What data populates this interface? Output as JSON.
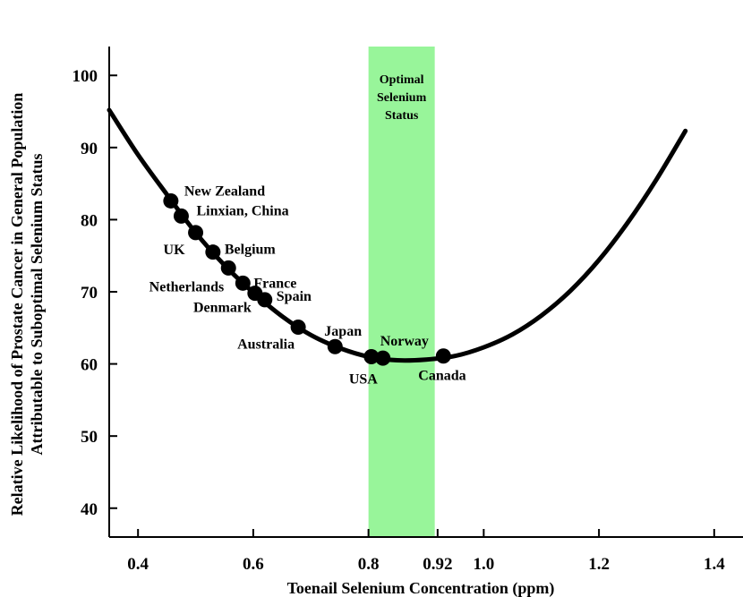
{
  "chart_data": {
    "type": "line",
    "xlabel": "Toenail Selenium Concentration (ppm)",
    "ylabel_lines": [
      "Relative Likelihood of Prostate Cancer in General Population",
      "Attributable to Suboptimal Selenium Status"
    ],
    "xlim": [
      0.35,
      1.45
    ],
    "ylim": [
      36,
      104
    ],
    "x_ticks": [
      {
        "value": 0.4,
        "label": "0.4"
      },
      {
        "value": 0.6,
        "label": "0.6"
      },
      {
        "value": 0.8,
        "label": "0.8"
      },
      {
        "value": 0.92,
        "label": "0.92"
      },
      {
        "value": 1.0,
        "label": "1.0"
      },
      {
        "value": 1.2,
        "label": "1.2"
      },
      {
        "value": 1.4,
        "label": "1.4"
      }
    ],
    "y_ticks": [
      {
        "value": 40,
        "label": "40"
      },
      {
        "value": 50,
        "label": "50"
      },
      {
        "value": 60,
        "label": "60"
      },
      {
        "value": 70,
        "label": "70"
      },
      {
        "value": 80,
        "label": "80"
      },
      {
        "value": 90,
        "label": "90"
      },
      {
        "value": 100,
        "label": "100"
      }
    ],
    "curve": {
      "x": [
        0.35,
        0.4,
        0.45,
        0.5,
        0.55,
        0.6,
        0.65,
        0.7,
        0.75,
        0.8,
        0.85,
        0.9,
        0.95,
        1.0,
        1.05,
        1.1,
        1.15,
        1.2,
        1.25,
        1.3,
        1.35
      ],
      "y": [
        95.2,
        89.0,
        83.5,
        78.2,
        73.7,
        69.9,
        66.6,
        64.0,
        62.2,
        61.0,
        60.5,
        60.6,
        61.1,
        62.3,
        64.1,
        66.7,
        70.1,
        74.4,
        79.6,
        85.6,
        92.3
      ]
    },
    "band": {
      "x_from": 0.8,
      "x_to": 0.915,
      "color": "#98f59a",
      "label_lines": [
        "Optimal",
        "Selenium",
        "Status"
      ]
    },
    "points": [
      {
        "label": "New Zealand",
        "x": 0.457,
        "y": 82.6
      },
      {
        "label": "Linxian, China",
        "x": 0.475,
        "y": 80.5
      },
      {
        "label": "UK",
        "x": 0.5,
        "y": 78.2
      },
      {
        "label": "Belgium",
        "x": 0.53,
        "y": 75.5
      },
      {
        "label": "Netherlands",
        "x": 0.557,
        "y": 73.3
      },
      {
        "label": "France",
        "x": 0.582,
        "y": 71.2
      },
      {
        "label": "Denmark",
        "x": 0.603,
        "y": 69.8
      },
      {
        "label": "Spain",
        "x": 0.62,
        "y": 68.9
      },
      {
        "label": "Australia",
        "x": 0.678,
        "y": 65.1
      },
      {
        "label": "Japan",
        "x": 0.742,
        "y": 62.4
      },
      {
        "label": "USA",
        "x": 0.805,
        "y": 61.0
      },
      {
        "label": "Norway",
        "x": 0.825,
        "y": 60.8
      },
      {
        "label": "Canada",
        "x": 0.93,
        "y": 61.1
      }
    ],
    "grid": false,
    "legend": "none",
    "colors": {
      "curve": "#000000",
      "points": "#000000",
      "band": "#98f59a"
    }
  }
}
